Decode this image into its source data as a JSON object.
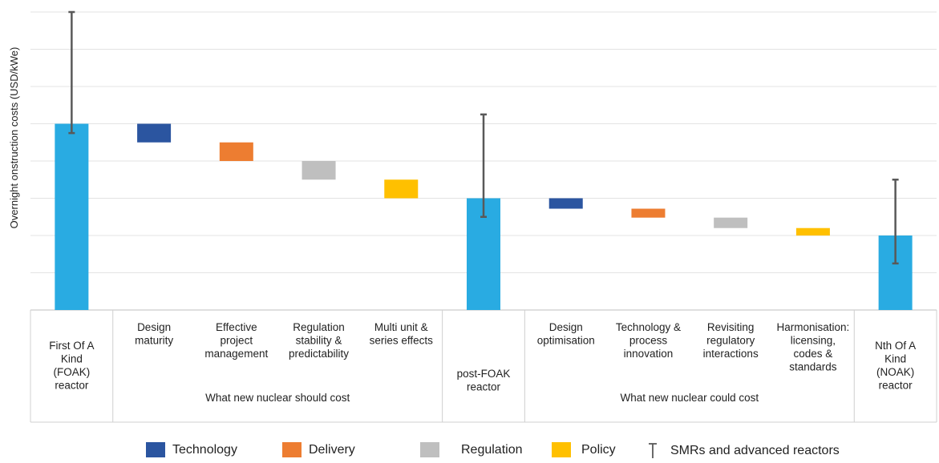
{
  "chart_data": {
    "type": "bar",
    "subtype": "waterfall",
    "ylabel": "Overnight onstruction costs (USD/kWe)",
    "ylim": [
      0,
      8
    ],
    "y_ticks_labeled": false,
    "grid": "horizontal",
    "legend_position": "bottom",
    "colors": {
      "Total": "#29ABE2",
      "Technology": "#2B55A0",
      "Delivery": "#ED7D31",
      "Regulation": "#BFBFBF",
      "Policy": "#FFC000",
      "ErrorBar": "#595959"
    },
    "categories": [
      "First Of A Kind (FOAK) reactor",
      "Design maturity",
      "Effective project management",
      "Regulation stability & predictability",
      "Multi unit & series effects",
      "post-FOAK reactor",
      "Design optimisation",
      "Technology & process innovation",
      "Revisiting regulatory interactions",
      "Harmonisation: licensing, codes & standards",
      "Nth Of A Kind (NOAK) reactor"
    ],
    "category_lines": [
      [
        "First Of A",
        "Kind",
        "(FOAK)",
        "reactor"
      ],
      [
        "Design",
        "maturity"
      ],
      [
        "Effective",
        "project",
        "management"
      ],
      [
        "Regulation",
        "stability &",
        "predictability"
      ],
      [
        "Multi unit &",
        "series effects"
      ],
      [
        "post-FOAK",
        "reactor"
      ],
      [
        "Design",
        "optimisation"
      ],
      [
        "Technology &",
        "process",
        "innovation"
      ],
      [
        "Revisiting",
        "regulatory",
        "interactions"
      ],
      [
        "Harmonisation:",
        "licensing,",
        "codes &",
        "standards"
      ],
      [
        "Nth Of A",
        "Kind",
        "(NOAK)",
        "reactor"
      ]
    ],
    "bars": [
      {
        "kind": "total",
        "driver": "Total",
        "start": 0,
        "end": 5.0,
        "error_bar": [
          4.75,
          8.0
        ]
      },
      {
        "kind": "step",
        "driver": "Technology",
        "start": 5.0,
        "end": 4.5,
        "delta": -0.5
      },
      {
        "kind": "step",
        "driver": "Delivery",
        "start": 4.5,
        "end": 4.0,
        "delta": -0.5
      },
      {
        "kind": "step",
        "driver": "Regulation",
        "start": 4.0,
        "end": 3.5,
        "delta": -0.5
      },
      {
        "kind": "step",
        "driver": "Policy",
        "start": 3.5,
        "end": 3.0,
        "delta": -0.5
      },
      {
        "kind": "total",
        "driver": "Total",
        "start": 0,
        "end": 3.0,
        "error_bar": [
          2.5,
          5.25
        ]
      },
      {
        "kind": "step",
        "driver": "Technology",
        "start": 3.0,
        "end": 2.72,
        "delta": -0.28
      },
      {
        "kind": "step",
        "driver": "Delivery",
        "start": 2.72,
        "end": 2.48,
        "delta": -0.24
      },
      {
        "kind": "step",
        "driver": "Regulation",
        "start": 2.48,
        "end": 2.2,
        "delta": -0.28
      },
      {
        "kind": "step",
        "driver": "Policy",
        "start": 2.2,
        "end": 2.0,
        "delta": -0.2
      },
      {
        "kind": "total",
        "driver": "Total",
        "start": 0,
        "end": 2.0,
        "error_bar": [
          1.25,
          3.5
        ]
      }
    ],
    "groups": [
      {
        "label": "What new nuclear should cost",
        "from": 1,
        "to": 4
      },
      {
        "label": "What new nuclear could cost",
        "from": 6,
        "to": 9
      }
    ],
    "legend": [
      {
        "label": "Technology",
        "type": "swatch",
        "driver": "Technology"
      },
      {
        "label": "Delivery",
        "type": "swatch",
        "driver": "Delivery"
      },
      {
        "label": "Regulation",
        "type": "swatch",
        "driver": "Regulation"
      },
      {
        "label": "Policy",
        "type": "swatch",
        "driver": "Policy"
      },
      {
        "label": "SMRs and advanced reactors",
        "type": "errorbar",
        "driver": "ErrorBar"
      }
    ]
  }
}
